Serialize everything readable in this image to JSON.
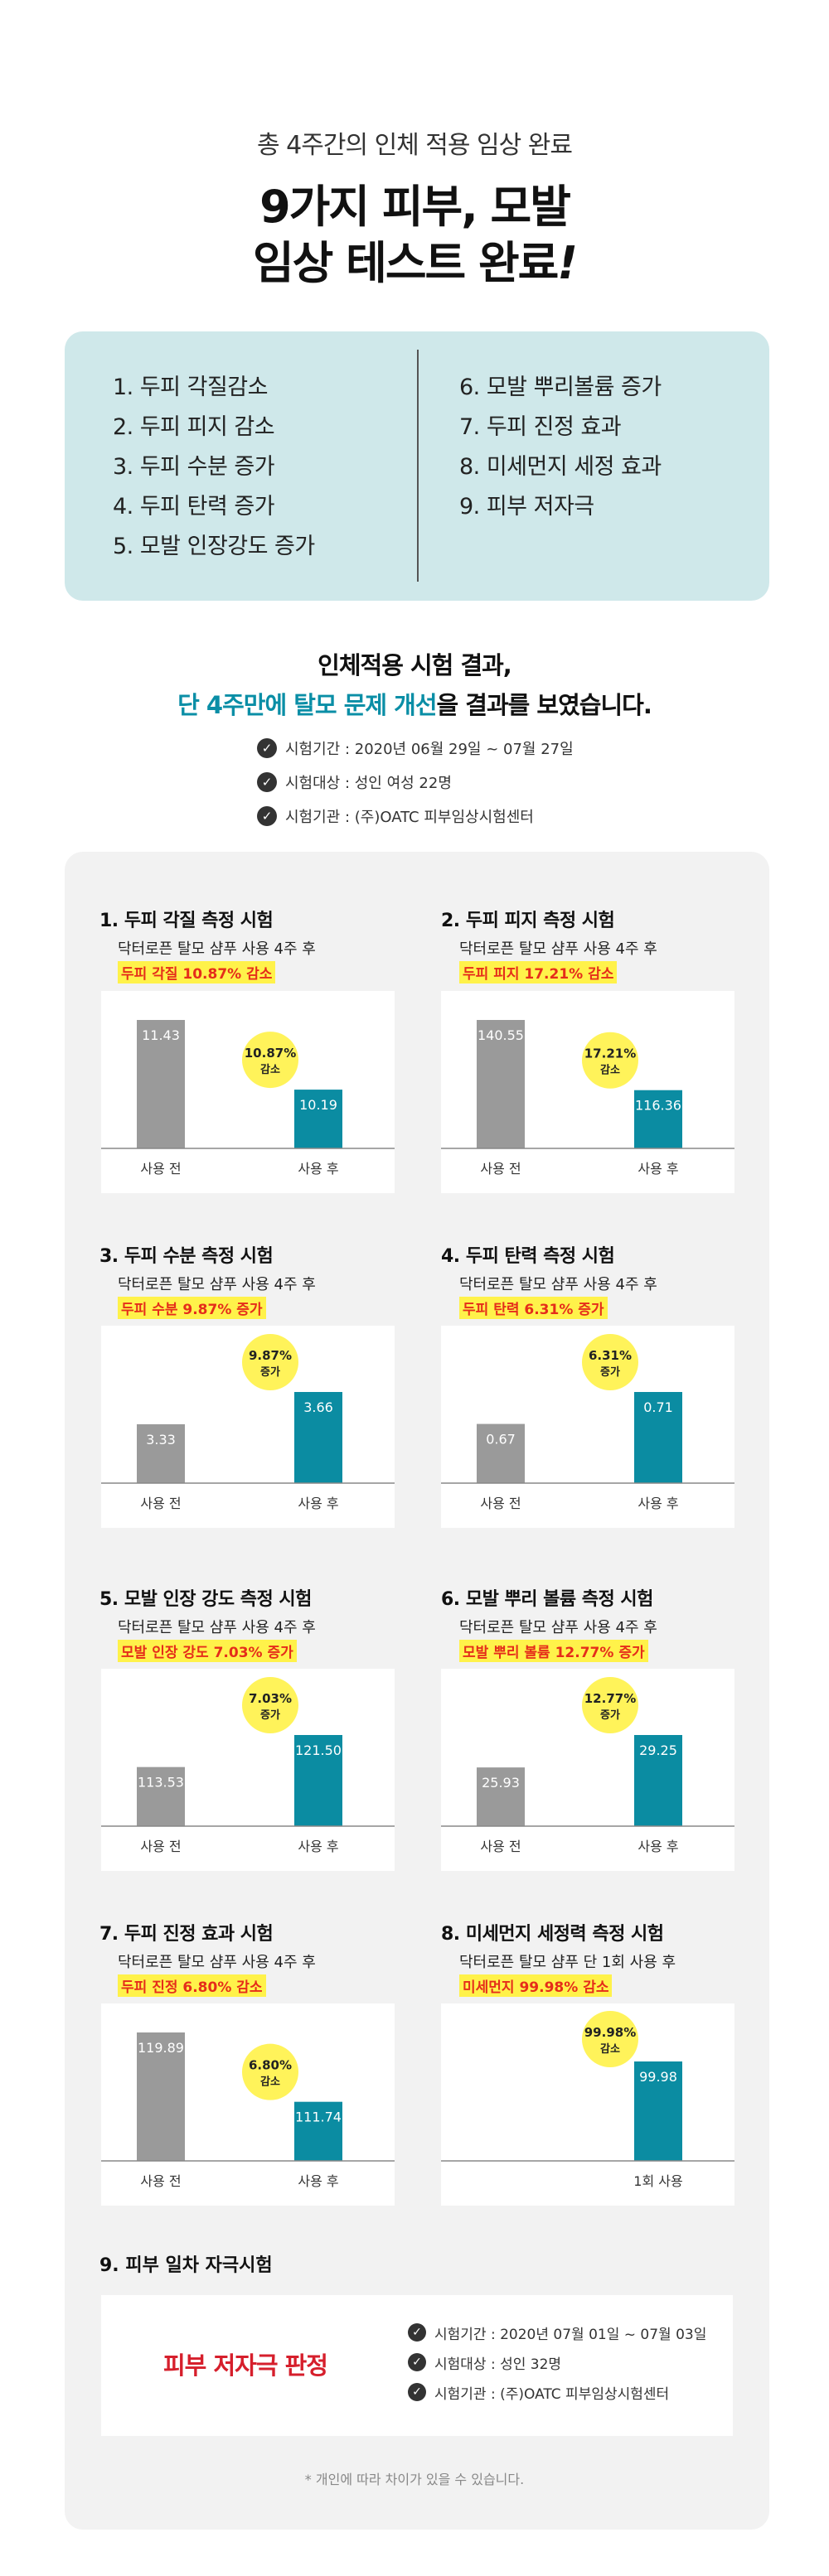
{
  "hero": {
    "subtitle": "총 4주간의 인체 적용 임상 완료",
    "title_line1": "9가지 피부, 모발",
    "title_line2": "임상 테스트 완료",
    "title_mark": "!"
  },
  "items_left": [
    "1. 두피 각질감소",
    "2. 두피 피지 감소",
    "3. 두피 수분 증가",
    "4. 두피 탄력 증가",
    "5. 모발 인장강도 증가"
  ],
  "items_right": [
    "6. 모발 뿌리볼륨 증가",
    "7. 두피 진정 효과",
    "8. 미세먼지 세정 효과",
    "9. 피부 저자극"
  ],
  "results": {
    "line1": "인체적용 시험 결과,",
    "line2_highlight": "단 4주만에 탈모 문제 개선",
    "line2_rest": "을 결과를 보였습니다."
  },
  "checks": [
    "시험기간 : 2020년 06월 29일 ~ 07월 27일",
    "시험대상 : 성인 여성 22명",
    "시험기관 : (주)OATC 피부임상시험센터"
  ],
  "check_icon": "check-circle-icon",
  "colors": {
    "before": "#9a9a9a",
    "after": "#0b8ca2",
    "bubble": "#fff35a",
    "highlight_text": "#e52d1a",
    "list_bg": "#cfe8ea",
    "panel_bg": "#f2f2f2"
  },
  "tests": [
    {
      "title": "1. 두피 각질 측정 시험",
      "sub": "닥터로픈 탈모 샴푸 사용 4주 후",
      "highlight": "두피 각질 10.87% 감소"
    },
    {
      "title": "2. 두피 피지 측정 시험",
      "sub": "닥터로픈 탈모 샴푸 사용 4주 후",
      "highlight": "두피 피지 17.21% 감소"
    },
    {
      "title": "3. 두피 수분 측정 시험",
      "sub": "닥터로픈 탈모 샴푸 사용 4주 후",
      "highlight": "두피 수분 9.87% 증가"
    },
    {
      "title": "4. 두피 탄력 측정 시험",
      "sub": "닥터로픈 탈모 샴푸 사용 4주 후",
      "highlight": "두피 탄력 6.31% 증가"
    },
    {
      "title": "5. 모발 인장 강도 측정 시험",
      "sub": "닥터로픈 탈모 샴푸 사용 4주 후",
      "highlight": "모발 인장 강도 7.03% 증가"
    },
    {
      "title": "6. 모발 뿌리 볼륨 측정 시험",
      "sub": "닥터로픈 탈모 샴푸 사용 4주 후",
      "highlight": "모발 뿌리 볼륨 12.77% 증가"
    },
    {
      "title": "7. 두피 진정 효과 시험",
      "sub": "닥터로픈 탈모 샴푸 사용 4주 후",
      "highlight": "두피 진정 6.80% 감소"
    },
    {
      "title": "8. 미세먼지 세정력 측정 시험",
      "sub": "닥터로픈 탈모 샴푸 단 1회 사용 후",
      "highlight": "미세먼지 99.98% 감소"
    }
  ],
  "chart_data": [
    {
      "type": "bar",
      "categories": [
        "사용 전",
        "사용 후"
      ],
      "values": [
        11.43,
        10.19
      ],
      "labels": [
        "11.43",
        "10.19"
      ],
      "badge_value": "10.87%",
      "badge_word": "감소"
    },
    {
      "type": "bar",
      "categories": [
        "사용 전",
        "사용 후"
      ],
      "values": [
        140.55,
        116.36
      ],
      "labels": [
        "140.55",
        "116.36"
      ],
      "badge_value": "17.21%",
      "badge_word": "감소"
    },
    {
      "type": "bar",
      "categories": [
        "사용 전",
        "사용 후"
      ],
      "values": [
        3.33,
        3.66
      ],
      "labels": [
        "3.33",
        "3.66"
      ],
      "badge_value": "9.87%",
      "badge_word": "증가"
    },
    {
      "type": "bar",
      "categories": [
        "사용 전",
        "사용 후"
      ],
      "values": [
        0.67,
        0.71
      ],
      "labels": [
        "0.67",
        "0.71"
      ],
      "badge_value": "6.31%",
      "badge_word": "증가"
    },
    {
      "type": "bar",
      "categories": [
        "사용 전",
        "사용 후"
      ],
      "values": [
        113.53,
        121.5
      ],
      "labels": [
        "113.53",
        "121.50"
      ],
      "badge_value": "7.03%",
      "badge_word": "증가"
    },
    {
      "type": "bar",
      "categories": [
        "사용 전",
        "사용 후"
      ],
      "values": [
        25.93,
        29.25
      ],
      "labels": [
        "25.93",
        "29.25"
      ],
      "badge_value": "12.77%",
      "badge_word": "증가"
    },
    {
      "type": "bar",
      "categories": [
        "사용 전",
        "사용 후"
      ],
      "values": [
        119.89,
        111.74
      ],
      "labels": [
        "119.89",
        "111.74"
      ],
      "badge_value": "6.80%",
      "badge_word": "감소"
    },
    {
      "type": "bar",
      "categories": [
        "1회 사용"
      ],
      "values": [
        99.98
      ],
      "labels": [
        "99.98"
      ],
      "badge_value": "99.98%",
      "badge_word": "감소"
    }
  ],
  "section9": {
    "title": "9. 피부 일차 자극시험",
    "verdict": "피부 저자극 판정",
    "checks": [
      "시험기간 : 2020년 07월 01일 ~ 07월 03일",
      "시험대상 : 성인 32명",
      "시험기관 : (주)OATC 피부임상시험센터"
    ]
  },
  "footnote": "* 개인에 따라 차이가 있을 수 있습니다."
}
